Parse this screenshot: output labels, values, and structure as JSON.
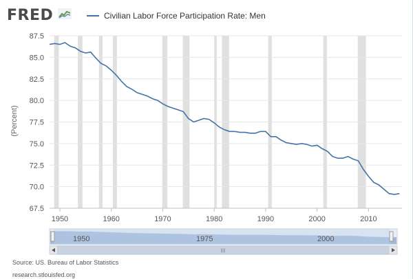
{
  "logo": {
    "text": "FRED",
    "icon": "chart-line-icon"
  },
  "legend": {
    "label": "Civilian Labor Force Participation Rate: Men",
    "color": "#4572a7"
  },
  "source": "Source: US. Bureau of Labor Statistics",
  "site": "research.stlouisfed.org",
  "navigator": {
    "labels": [
      "1950",
      "1975",
      "2000"
    ],
    "scroll_grip": "III"
  },
  "chart_data": {
    "type": "line",
    "title": "Civilian Labor Force Participation Rate: Men",
    "xlabel": "",
    "ylabel": "(Percent)",
    "xlim": [
      1948,
      2016.5
    ],
    "ylim": [
      67.5,
      87.5
    ],
    "yticks": [
      "67.5",
      "70.0",
      "72.5",
      "75.0",
      "77.5",
      "80.0",
      "82.5",
      "85.0",
      "87.5"
    ],
    "xticks": [
      "1950",
      "1960",
      "1970",
      "1980",
      "1990",
      "2000",
      "2010"
    ],
    "grid": true,
    "legend_position": "top",
    "recessions": [
      [
        1948.9,
        1949.8
      ],
      [
        1953.5,
        1954.4
      ],
      [
        1957.6,
        1958.3
      ],
      [
        1960.3,
        1961.1
      ],
      [
        1969.9,
        1970.9
      ],
      [
        1973.9,
        1975.2
      ],
      [
        1980.0,
        1980.5
      ],
      [
        1981.5,
        1982.9
      ],
      [
        1990.5,
        1991.2
      ],
      [
        2001.2,
        2001.9
      ],
      [
        2007.9,
        2009.5
      ]
    ],
    "series": [
      {
        "name": "Civilian Labor Force Participation Rate: Men",
        "color": "#4572a7",
        "x": [
          1948,
          1949,
          1950,
          1951,
          1952,
          1953,
          1954,
          1955,
          1956,
          1957,
          1958,
          1959,
          1960,
          1961,
          1962,
          1963,
          1964,
          1965,
          1966,
          1967,
          1968,
          1969,
          1970,
          1971,
          1972,
          1973,
          1974,
          1975,
          1976,
          1977,
          1978,
          1979,
          1980,
          1981,
          1982,
          1983,
          1984,
          1985,
          1986,
          1987,
          1988,
          1989,
          1990,
          1991,
          1992,
          1993,
          1994,
          1995,
          1996,
          1997,
          1998,
          1999,
          2000,
          2001,
          2002,
          2003,
          2004,
          2005,
          2006,
          2007,
          2008,
          2009,
          2010,
          2011,
          2012,
          2013,
          2014,
          2015,
          2016
        ],
        "y": [
          86.5,
          86.6,
          86.5,
          86.7,
          86.3,
          86.1,
          85.7,
          85.5,
          85.6,
          84.9,
          84.3,
          84.0,
          83.5,
          82.9,
          82.2,
          81.6,
          81.3,
          80.9,
          80.7,
          80.5,
          80.2,
          80.0,
          79.6,
          79.3,
          79.1,
          78.9,
          78.7,
          77.9,
          77.5,
          77.7,
          77.9,
          77.8,
          77.4,
          76.9,
          76.6,
          76.4,
          76.4,
          76.3,
          76.3,
          76.2,
          76.2,
          76.4,
          76.4,
          75.8,
          75.8,
          75.4,
          75.1,
          75.0,
          74.9,
          75.0,
          74.9,
          74.7,
          74.8,
          74.4,
          74.1,
          73.5,
          73.3,
          73.3,
          73.5,
          73.2,
          73.0,
          72.0,
          71.2,
          70.5,
          70.2,
          69.7,
          69.2,
          69.1,
          69.2
        ]
      }
    ]
  }
}
